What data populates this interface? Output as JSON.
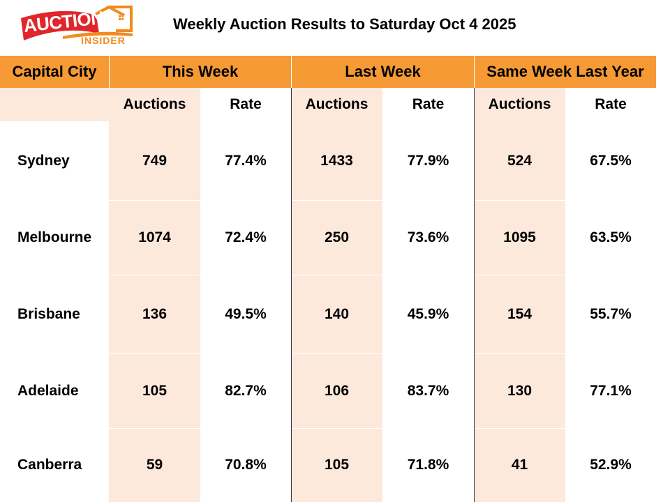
{
  "logo": {
    "main_text": "AUCTION",
    "sub_text": "INSIDER",
    "icon": "house-window-icon",
    "colors": {
      "red": "#e0262b",
      "orange": "#f28a20"
    }
  },
  "title": "Weekly Auction Results to Saturday Oct 4 2025",
  "table": {
    "header": {
      "city_label": "Capital City",
      "groups": [
        "This Week",
        "Last Week",
        "Same Week Last Year"
      ]
    },
    "subheader": {
      "auctions_label": "Auctions",
      "rate_label": "Rate"
    },
    "rows": [
      {
        "city": "Sydney",
        "this_auctions": "749",
        "this_rate": "77.4%",
        "last_auctions": "1433",
        "last_rate": "77.9%",
        "ly_auctions": "524",
        "ly_rate": "67.5%"
      },
      {
        "city": "Melbourne",
        "this_auctions": "1074",
        "this_rate": "72.4%",
        "last_auctions": "250",
        "last_rate": "73.6%",
        "ly_auctions": "1095",
        "ly_rate": "63.5%"
      },
      {
        "city": "Brisbane",
        "this_auctions": "136",
        "this_rate": "49.5%",
        "last_auctions": "140",
        "last_rate": "45.9%",
        "ly_auctions": "154",
        "ly_rate": "55.7%"
      },
      {
        "city": "Adelaide",
        "this_auctions": "105",
        "this_rate": "82.7%",
        "last_auctions": "106",
        "last_rate": "83.7%",
        "ly_auctions": "130",
        "ly_rate": "77.1%"
      },
      {
        "city": "Canberra",
        "this_auctions": "59",
        "this_rate": "70.8%",
        "last_auctions": "105",
        "last_rate": "71.8%",
        "ly_auctions": "41",
        "ly_rate": "52.9%"
      }
    ],
    "colors": {
      "header_bg": "#f59a35",
      "peach_bg": "#fce9dc",
      "text": "#000000"
    }
  }
}
